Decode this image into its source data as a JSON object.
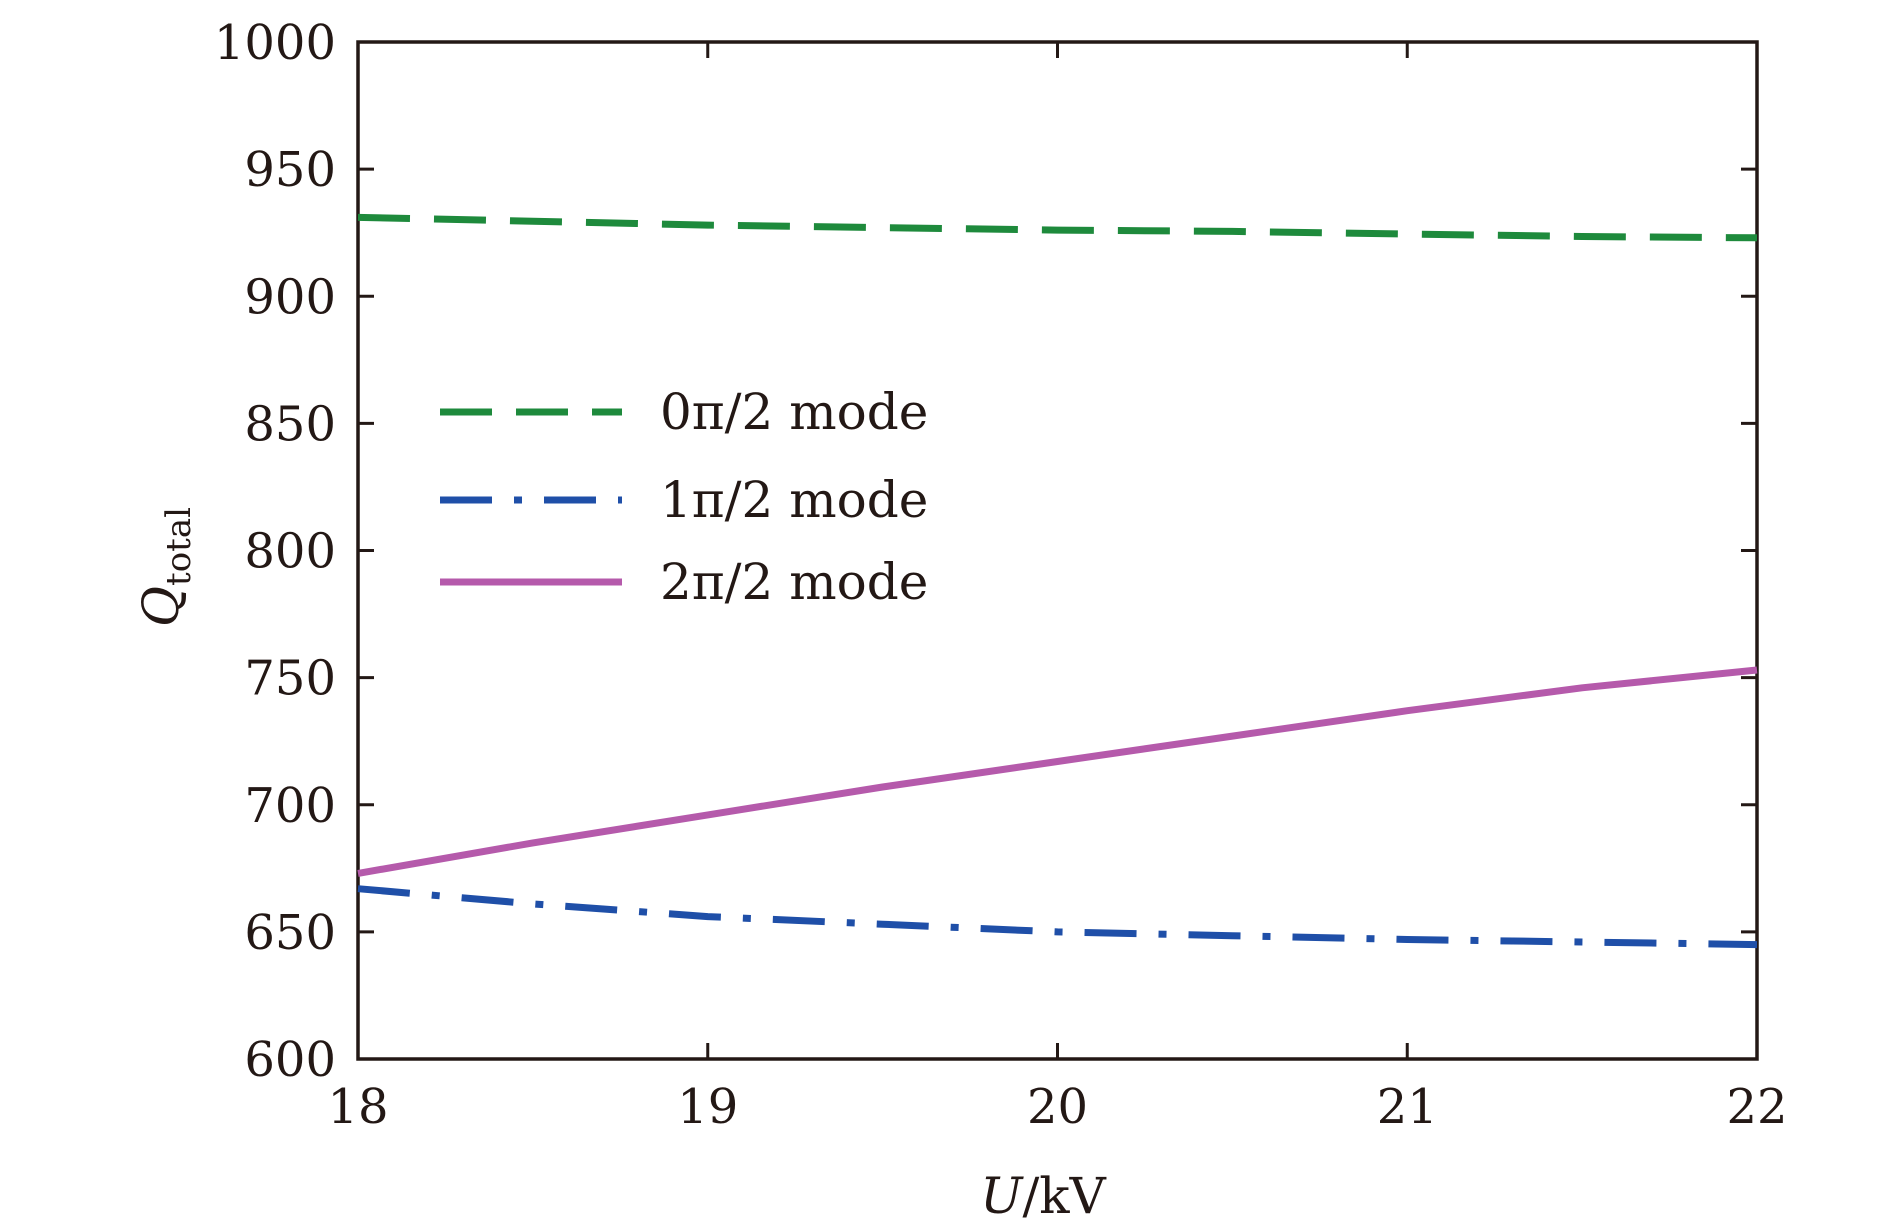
{
  "chart_data": {
    "type": "line",
    "title": "",
    "xlabel": {
      "main": "U",
      "rest": "/kV"
    },
    "ylabel": {
      "main": "Q",
      "sub": "total"
    },
    "xlim": [
      18,
      22
    ],
    "ylim": [
      600,
      1000
    ],
    "xticks": [
      "18",
      "19",
      "20",
      "21",
      "22"
    ],
    "yticks": [
      "600",
      "650",
      "700",
      "750",
      "800",
      "850",
      "900",
      "950",
      "1000"
    ],
    "grid": false,
    "legend_position": "upper-left",
    "series": [
      {
        "name": "0π/2 mode",
        "color": "#1e8a3c",
        "style": "dashed",
        "x": [
          18,
          18.5,
          19,
          19.5,
          20,
          20.5,
          21,
          21.5,
          22
        ],
        "y": [
          931,
          929.5,
          928,
          927,
          926,
          925.5,
          924.5,
          923.5,
          923
        ]
      },
      {
        "name": "1π/2 mode",
        "color": "#1f4fa8",
        "style": "dashdot",
        "x": [
          18,
          18.5,
          19,
          19.5,
          20,
          20.5,
          21,
          21.5,
          22
        ],
        "y": [
          667,
          661,
          656,
          653,
          650,
          648.5,
          647,
          646,
          645
        ]
      },
      {
        "name": "2π/2 mode",
        "color": "#b55aab",
        "style": "solid",
        "x": [
          18,
          18.5,
          19,
          19.5,
          20,
          20.5,
          21,
          21.5,
          22
        ],
        "y": [
          673,
          685,
          696,
          707,
          717,
          727,
          737,
          746,
          753
        ]
      }
    ]
  }
}
